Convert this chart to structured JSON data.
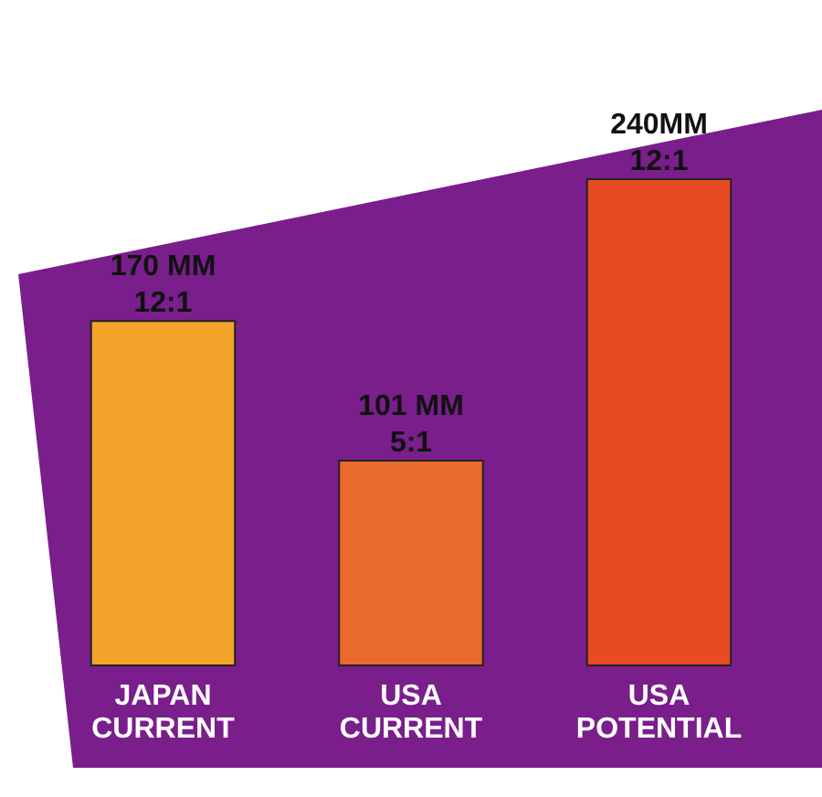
{
  "chart_data": {
    "type": "bar",
    "categories": [
      "JAPAN CURRENT",
      "USA CURRENT",
      "USA POTENTIAL"
    ],
    "values": [
      170,
      101,
      240
    ],
    "colors": [
      "#f2a52a",
      "#ea6a2c",
      "#e84a22"
    ],
    "value_labels": [
      "170 MM 12:1",
      "101 MM 5:1",
      "240MM 12:1"
    ]
  }
}
